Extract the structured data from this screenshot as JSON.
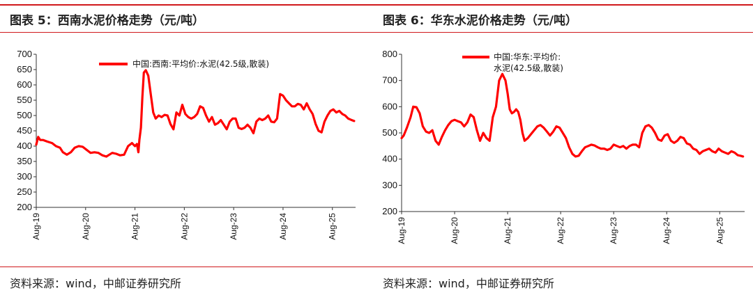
{
  "left": {
    "title": "图表 5：西南水泥价格走势（元/吨）",
    "source": "资料来源：wind，中邮证券研究所"
  },
  "right": {
    "title": "图表 6：华东水泥价格走势（元/吨）",
    "source": "资料来源：wind，中邮证券研究所"
  },
  "colors": {
    "line": "#ff0000",
    "rule": "#d0181b"
  },
  "chart_data": [
    {
      "type": "line",
      "legend": [
        "中国:西南:平均价:水泥(42.5级,散装)"
      ],
      "legend_position": "top",
      "ylim": [
        200,
        700
      ],
      "yticks": [
        200,
        250,
        300,
        350,
        400,
        450,
        500,
        550,
        600,
        650,
        700
      ],
      "xticks": [
        "Aug-19",
        "Aug-20",
        "Aug-21",
        "Aug-22",
        "Aug-23",
        "Aug-24",
        "Aug-25"
      ],
      "x_range": [
        2019.58,
        2026.05
      ],
      "grid": false,
      "series": [
        {
          "x": [
            2019.58,
            2019.62,
            2019.66,
            2019.72,
            2019.8,
            2019.9,
            2019.98,
            2020.06,
            2020.12,
            2020.2,
            2020.28,
            2020.36,
            2020.44,
            2020.52,
            2020.6,
            2020.68,
            2020.76,
            2020.84,
            2020.92,
            2021.0,
            2021.06,
            2021.12,
            2021.2,
            2021.28,
            2021.36,
            2021.44,
            2021.52,
            2021.58,
            2021.62,
            2021.65,
            2021.67,
            2021.7,
            2021.73,
            2021.76,
            2021.8,
            2021.85,
            2021.9,
            2021.95,
            2022.0,
            2022.06,
            2022.12,
            2022.18,
            2022.24,
            2022.3,
            2022.36,
            2022.42,
            2022.48,
            2022.54,
            2022.6,
            2022.66,
            2022.72,
            2022.78,
            2022.84,
            2022.9,
            2022.96,
            2023.02,
            2023.08,
            2023.14,
            2023.2,
            2023.26,
            2023.32,
            2023.38,
            2023.44,
            2023.5,
            2023.56,
            2023.62,
            2023.68,
            2023.74,
            2023.8,
            2023.86,
            2023.92,
            2023.98,
            2024.04,
            2024.1,
            2024.16,
            2024.22,
            2024.28,
            2024.34,
            2024.4,
            2024.46,
            2024.52,
            2024.58,
            2024.64,
            2024.7,
            2024.76,
            2024.82,
            2024.88,
            2024.94,
            2025.0,
            2025.06,
            2025.12,
            2025.18,
            2025.24,
            2025.3,
            2025.36,
            2025.42,
            2025.48,
            2025.54,
            2025.6,
            2025.66,
            2025.72,
            2025.78,
            2025.84,
            2025.9,
            2025.96,
            2026.02
          ],
          "y": [
            405,
            430,
            420,
            420,
            415,
            410,
            400,
            395,
            380,
            372,
            380,
            395,
            400,
            398,
            388,
            378,
            380,
            378,
            370,
            366,
            372,
            378,
            375,
            370,
            372,
            400,
            410,
            400,
            407,
            380,
            420,
            460,
            560,
            640,
            648,
            630,
            570,
            510,
            490,
            500,
            495,
            502,
            500,
            472,
            455,
            510,
            500,
            535,
            505,
            495,
            490,
            495,
            505,
            530,
            525,
            500,
            480,
            495,
            470,
            475,
            485,
            470,
            455,
            480,
            490,
            490,
            460,
            456,
            460,
            470,
            460,
            442,
            480,
            490,
            485,
            490,
            500,
            480,
            478,
            490,
            570,
            565,
            550,
            540,
            530,
            530,
            538,
            535,
            520,
            540,
            520,
            505,
            472,
            450,
            445,
            480,
            500,
            515,
            520,
            510,
            515,
            505,
            500,
            490,
            486,
            482
          ]
        }
      ]
    },
    {
      "type": "line",
      "legend": [
        "中国:华东:平均价:水泥(42.5级,散装)"
      ],
      "legend_position": "top",
      "ylim": [
        200,
        800
      ],
      "yticks": [
        200,
        300,
        400,
        500,
        600,
        700,
        800
      ],
      "xticks": [
        "Aug-19",
        "Aug-20",
        "Aug-21",
        "Aug-22",
        "Aug-23",
        "Aug-24",
        "Aug-25"
      ],
      "x_range": [
        2019.58,
        2026.05
      ],
      "grid": false,
      "series": [
        {
          "x": [
            2019.58,
            2019.62,
            2019.68,
            2019.75,
            2019.8,
            2019.86,
            2019.92,
            2019.98,
            2020.04,
            2020.1,
            2020.16,
            2020.22,
            2020.28,
            2020.34,
            2020.4,
            2020.46,
            2020.52,
            2020.58,
            2020.64,
            2020.7,
            2020.76,
            2020.82,
            2020.88,
            2020.94,
            2021.0,
            2021.06,
            2021.12,
            2021.18,
            2021.24,
            2021.3,
            2021.36,
            2021.42,
            2021.48,
            2021.54,
            2021.58,
            2021.62,
            2021.66,
            2021.7,
            2021.74,
            2021.78,
            2021.82,
            2021.86,
            2021.9,
            2021.96,
            2022.02,
            2022.08,
            2022.14,
            2022.2,
            2022.26,
            2022.32,
            2022.38,
            2022.44,
            2022.5,
            2022.56,
            2022.62,
            2022.68,
            2022.74,
            2022.8,
            2022.86,
            2022.92,
            2022.98,
            2023.04,
            2023.1,
            2023.16,
            2023.22,
            2023.28,
            2023.34,
            2023.4,
            2023.46,
            2023.52,
            2023.58,
            2023.64,
            2023.7,
            2023.76,
            2023.82,
            2023.88,
            2023.94,
            2024.0,
            2024.06,
            2024.12,
            2024.18,
            2024.24,
            2024.3,
            2024.36,
            2024.42,
            2024.48,
            2024.54,
            2024.6,
            2024.66,
            2024.72,
            2024.78,
            2024.84,
            2024.9,
            2024.96,
            2025.02,
            2025.08,
            2025.14,
            2025.2,
            2025.26,
            2025.32,
            2025.38,
            2025.44,
            2025.5,
            2025.56,
            2025.62,
            2025.68,
            2025.74,
            2025.8,
            2025.86,
            2025.92,
            2025.98,
            2026.02
          ],
          "y": [
            480,
            490,
            520,
            560,
            600,
            598,
            575,
            525,
            505,
            500,
            510,
            470,
            455,
            485,
            510,
            530,
            545,
            550,
            545,
            540,
            525,
            540,
            570,
            560,
            510,
            470,
            500,
            480,
            470,
            560,
            600,
            700,
            725,
            700,
            650,
            590,
            575,
            580,
            590,
            580,
            550,
            500,
            470,
            480,
            495,
            510,
            525,
            530,
            520,
            505,
            490,
            505,
            525,
            520,
            500,
            480,
            445,
            420,
            410,
            413,
            430,
            445,
            450,
            455,
            452,
            445,
            440,
            440,
            435,
            440,
            455,
            450,
            445,
            450,
            440,
            450,
            455,
            455,
            445,
            500,
            525,
            530,
            520,
            500,
            475,
            470,
            490,
            495,
            470,
            462,
            470,
            485,
            480,
            460,
            455,
            440,
            435,
            420,
            430,
            435,
            440,
            430,
            425,
            440,
            430,
            425,
            420,
            430,
            425,
            415,
            412,
            410
          ]
        }
      ]
    }
  ]
}
